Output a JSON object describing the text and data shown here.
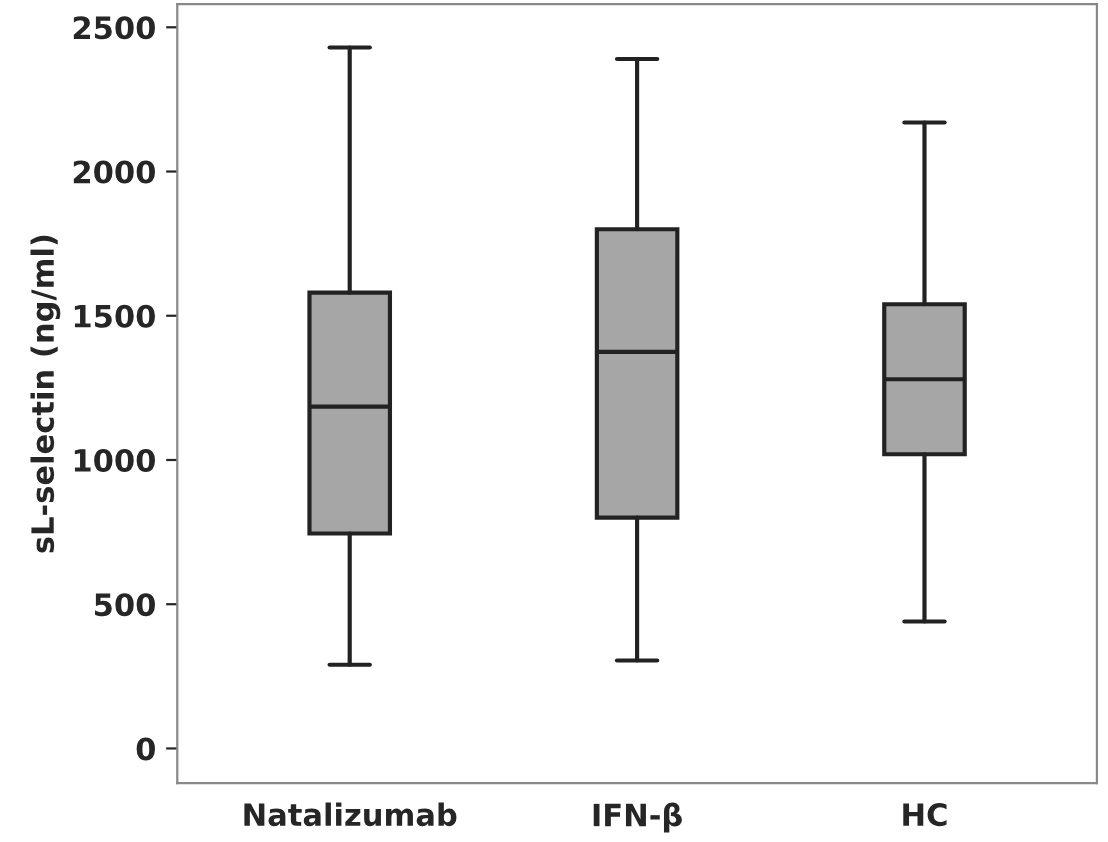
{
  "chart_data": {
    "type": "box",
    "ylabel": "sL-selectin (ng/ml)",
    "categories": [
      "Natalizumab",
      "IFN-β",
      "HC"
    ],
    "boxes": [
      {
        "low": 290,
        "q1": 745,
        "median": 1185,
        "q3": 1580,
        "high": 2430
      },
      {
        "low": 305,
        "q1": 800,
        "median": 1375,
        "q3": 1800,
        "high": 2390
      },
      {
        "low": 440,
        "q1": 1020,
        "median": 1280,
        "q3": 1540,
        "high": 2170
      }
    ],
    "color": "#a6a6a6",
    "ylim": [
      -120,
      2580
    ],
    "yticks": [
      0,
      500,
      1000,
      1500,
      2000,
      2500
    ],
    "grid": false
  }
}
